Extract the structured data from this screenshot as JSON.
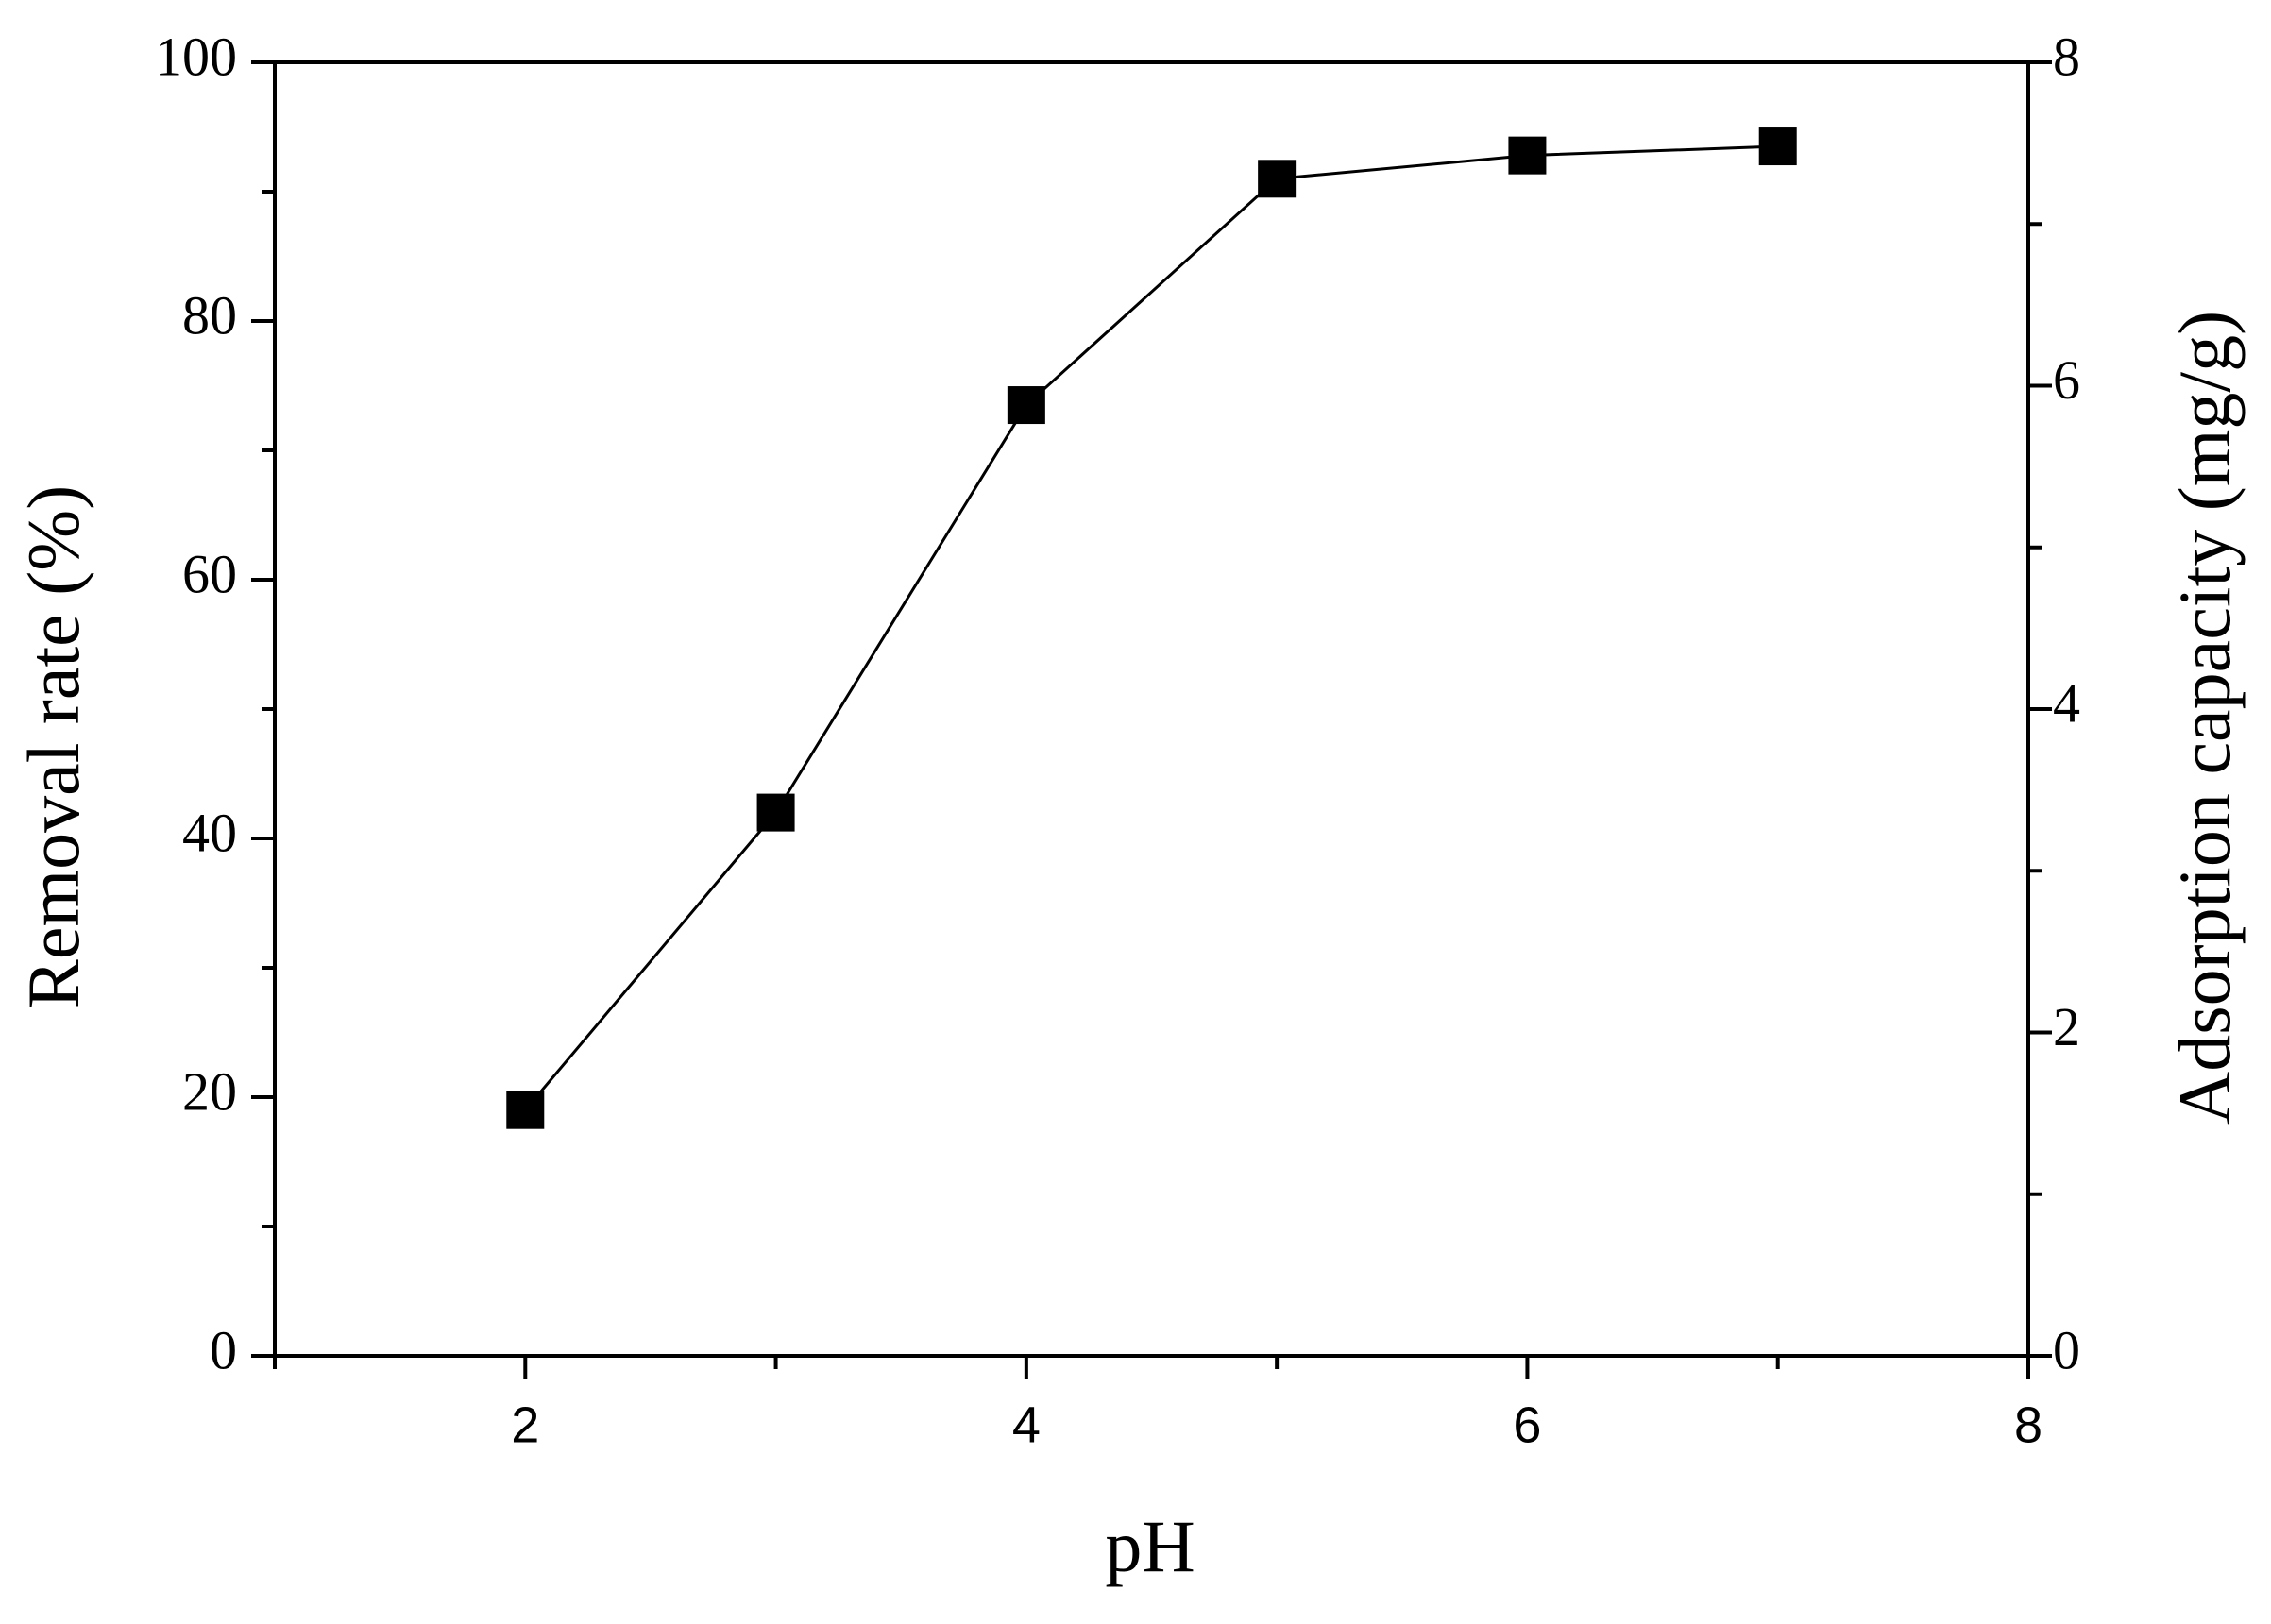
{
  "chart_data": {
    "type": "line",
    "x_label": "pH",
    "y_label": "Removal rate (%)",
    "y2_label": "Adsorption capacity (mg/g)",
    "x": [
      2,
      3,
      4,
      5,
      6,
      7
    ],
    "series": [
      {
        "color": "#000000",
        "marker": "square",
        "values": [
          19.0,
          42.0,
          73.5,
          91.0,
          92.8,
          93.5
        ]
      }
    ],
    "xlim": [
      1,
      8
    ],
    "xticks": [
      2,
      4,
      6,
      8
    ],
    "xticks_minor": [
      1,
      3,
      5,
      7
    ],
    "ylim": [
      0,
      100
    ],
    "yticks": [
      0,
      20,
      40,
      60,
      80,
      100
    ],
    "yticks_minor": [
      10,
      30,
      50,
      70,
      90
    ],
    "y2lim": [
      0,
      8
    ],
    "y2ticks": [
      0,
      2,
      4,
      6,
      8
    ],
    "y2ticks_minor": [
      1,
      3,
      5,
      7
    ],
    "grid": false
  }
}
